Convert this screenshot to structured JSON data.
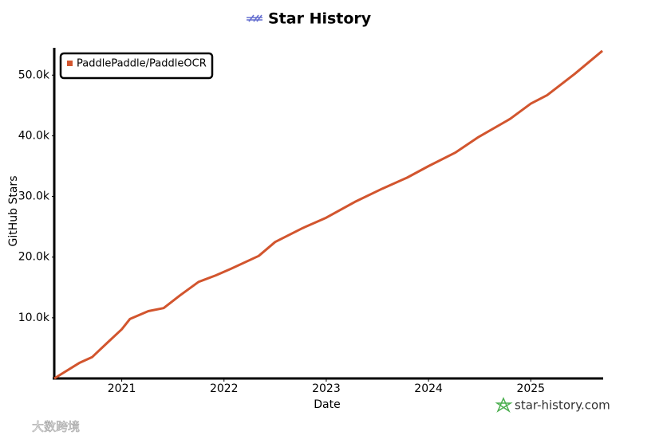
{
  "chart_data": {
    "type": "line",
    "title": "Star History",
    "x_label": "Date",
    "y_label": "GitHub Stars",
    "x": [
      2020.34,
      2020.59,
      2020.71,
      2020.86,
      2021.0,
      2021.08,
      2021.26,
      2021.41,
      2021.57,
      2021.75,
      2021.92,
      2022.07,
      2022.34,
      2022.5,
      2022.77,
      2023.0,
      2023.28,
      2023.55,
      2023.79,
      2024.0,
      2024.26,
      2024.49,
      2024.8,
      2025.0,
      2025.16,
      2025.43,
      2025.7
    ],
    "series": [
      {
        "name": "PaddlePaddle/PaddleOCR",
        "color": "#d2552e",
        "values": [
          0,
          2600,
          3500,
          5900,
          8100,
          9800,
          11100,
          11600,
          13700,
          15900,
          17000,
          18100,
          20200,
          22500,
          24800,
          26500,
          29100,
          31300,
          33100,
          35000,
          37200,
          39800,
          42800,
          45300,
          46700,
          50200,
          54000
        ]
      }
    ],
    "xlim": [
      2020.34,
      2025.7
    ],
    "xticks": [
      2021,
      2022,
      2023,
      2024,
      2025
    ],
    "ylim": [
      0,
      54500
    ],
    "yticks": [
      {
        "value": 10000,
        "label": "10.0k"
      },
      {
        "value": 20000,
        "label": "20.0k"
      },
      {
        "value": 30000,
        "label": "30.0k"
      },
      {
        "value": 40000,
        "label": "40.0k"
      },
      {
        "value": 50000,
        "label": "50.0k"
      }
    ],
    "legend": "top-left",
    "grid": false,
    "source": "star-history.com",
    "watermark": "大数跨境"
  }
}
